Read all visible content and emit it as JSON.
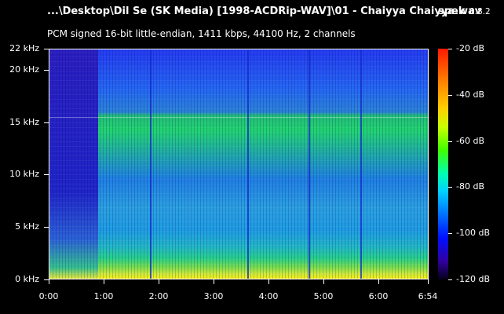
{
  "header": {
    "title": "...\\Desktop\\Dil Se (SK Media) [1998-ACDRip-WAV]\\01 - Chaiyya Chaiyya.wav",
    "app_name": "spek",
    "app_version": "0.8.2",
    "subtitle": "PCM signed 16-bit little-endian, 1411 kbps, 44100 Hz, 2 channels"
  },
  "chart_data": {
    "type": "heatmap",
    "title": "...\\Desktop\\Dil Se (SK Media) [1998-ACDRip-WAV]\\01 - Chaiyya Chaiyya.wav",
    "subtitle": "PCM signed 16-bit little-endian, 1411 kbps, 44100 Hz, 2 channels",
    "x_axis": {
      "unit": "time",
      "range": [
        0,
        414
      ],
      "ticks": [
        {
          "value": 0,
          "label": "0:00"
        },
        {
          "value": 60,
          "label": "1:00"
        },
        {
          "value": 120,
          "label": "2:00"
        },
        {
          "value": 180,
          "label": "3:00"
        },
        {
          "value": 240,
          "label": "4:00"
        },
        {
          "value": 300,
          "label": "5:00"
        },
        {
          "value": 360,
          "label": "6:00"
        },
        {
          "value": 414,
          "label": "6:54"
        }
      ]
    },
    "y_axis": {
      "unit": "kHz",
      "range": [
        0,
        22
      ],
      "ticks": [
        {
          "value": 0,
          "label": "0 kHz"
        },
        {
          "value": 5,
          "label": "5 kHz"
        },
        {
          "value": 10,
          "label": "10 kHz"
        },
        {
          "value": 15,
          "label": "15 kHz"
        },
        {
          "value": 20,
          "label": "20 kHz"
        },
        {
          "value": 22,
          "label": "22 kHz"
        }
      ]
    },
    "colorbar": {
      "unit": "dB",
      "range": [
        -120,
        -20
      ],
      "ticks": [
        {
          "value": -20,
          "label": "-20 dB"
        },
        {
          "value": -40,
          "label": "-40 dB"
        },
        {
          "value": -60,
          "label": "-60 dB"
        },
        {
          "value": -80,
          "label": "-80 dB"
        },
        {
          "value": -100,
          "label": "-100 dB"
        },
        {
          "value": -120,
          "label": "-120 dB"
        }
      ]
    }
  }
}
